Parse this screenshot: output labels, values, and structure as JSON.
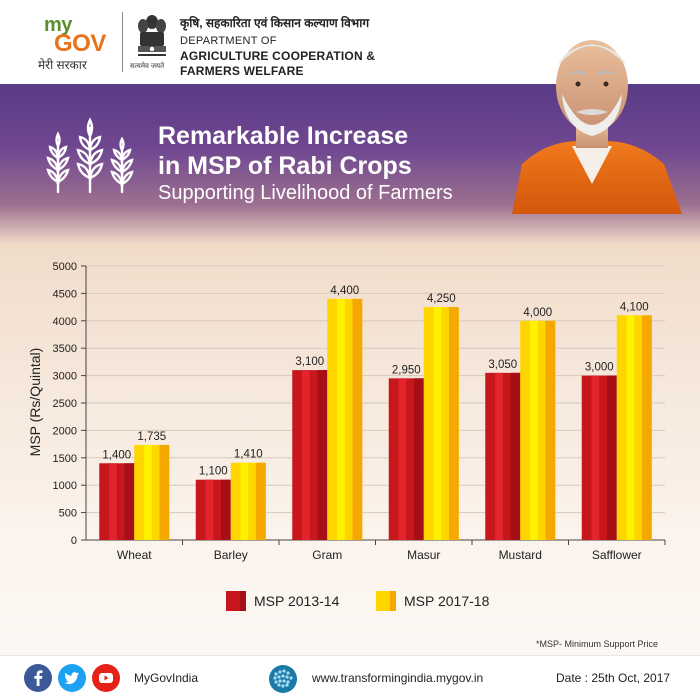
{
  "header": {
    "logo_my": "my",
    "logo_gov": "GOV",
    "logo_sub": "मेरी सरकार",
    "emblem_caption": "सत्यमेव जयते",
    "dept_hindi": "कृषि, सहकारिता एवं किसान कल्याण विभाग",
    "dept_line1": "DEPARTMENT OF",
    "dept_line2": "AGRICULTURE COOPERATION &",
    "dept_line3": "FARMERS WELFARE"
  },
  "banner": {
    "title_line1": "Remarkable Increase",
    "title_line2": "in MSP of Rabi Crops",
    "subtitle": "Supporting Livelihood of Farmers",
    "icon": "wheat-icon"
  },
  "chart_data": {
    "type": "bar",
    "categories": [
      "Wheat",
      "Barley",
      "Gram",
      "Masur",
      "Mustard",
      "Safflower"
    ],
    "series": [
      {
        "name": "MSP 2013-14",
        "values": [
          1400,
          1100,
          3100,
          2950,
          3050,
          3000
        ],
        "color": "#c8161d"
      },
      {
        "name": "MSP 2017-18",
        "values": [
          1735,
          1410,
          4400,
          4250,
          4000,
          4100
        ],
        "color": "#ffd500"
      }
    ],
    "data_labels": [
      [
        "1,400",
        "1,100",
        "3,100",
        "2,950",
        "3,050",
        "3,000"
      ],
      [
        "1,735",
        "1,410",
        "4,400",
        "4,250",
        "4,000",
        "4,100"
      ]
    ],
    "ylabel": "MSP (Rs/Quintal)",
    "xlabel": "",
    "ylim": [
      0,
      5000
    ],
    "yticks": [
      0,
      500,
      1000,
      1500,
      2000,
      2500,
      3000,
      3500,
      4000,
      4500,
      5000
    ],
    "grid": true,
    "legend_position": "bottom-center"
  },
  "footnote": "*MSP- Minimum Support Price",
  "footer": {
    "social_icons": [
      "facebook-icon",
      "twitter-icon",
      "youtube-icon"
    ],
    "handle": "MyGovIndia",
    "website": "www.transformingindia.mygov.in",
    "date": "Date : 25th Oct, 2017"
  }
}
